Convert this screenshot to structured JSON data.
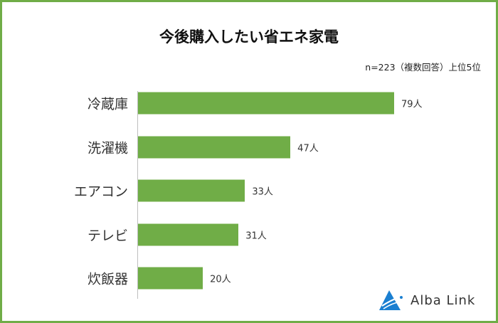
{
  "chart_data": {
    "type": "bar",
    "orientation": "horizontal",
    "title": "今後購入したい省エネ家電",
    "note": "n=223（複数回答）上位5位",
    "categories": [
      "冷蔵庫",
      "洗濯機",
      "エアコン",
      "テレビ",
      "炊飯器"
    ],
    "values": [
      79,
      47,
      33,
      31,
      20
    ],
    "value_labels": [
      "79人",
      "47人",
      "33人",
      "31人",
      "20人"
    ],
    "xlim": [
      0,
      79
    ],
    "grid": false,
    "bar_color": "#70ad47"
  },
  "logo": {
    "text": "Alba Link"
  },
  "colors": {
    "border": "#70ad47",
    "logo_blue": "#1a7fd1"
  }
}
